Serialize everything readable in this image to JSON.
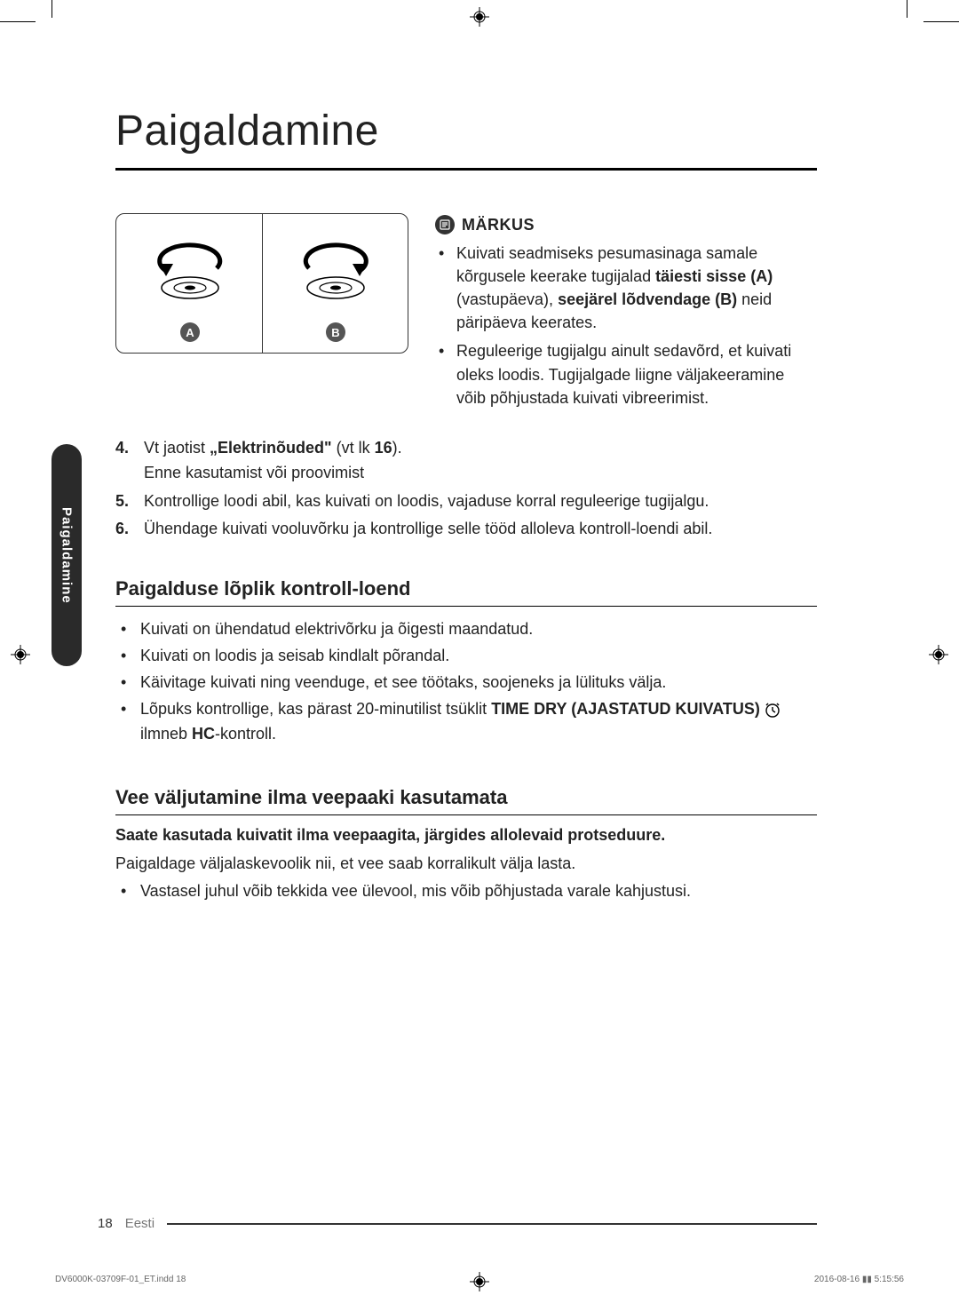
{
  "title": "Paigaldamine",
  "diagram": {
    "label_a": "A",
    "label_b": "B"
  },
  "note": {
    "heading": "MÄRKUS",
    "items": [
      "Kuivati seadmiseks pesumasinaga samale kõrgusele keerake tugijalad <b>täiesti sisse (A)</b> (vastupäeva), <b>seejärel lõdvendage (B)</b> neid päripäeva keerates.",
      "Reguleerige tugijalgu ainult sedavõrd, et kuivati oleks loodis. Tugijalgade liigne väljakeeramine võib põhjustada kuivati vibreerimist."
    ]
  },
  "steps": [
    {
      "n": "4.",
      "html": "Vt jaotist <b>„Elektrinõuded\"</b> (vt lk <b>16</b>).<br>Enne kasutamist või proovimist"
    },
    {
      "n": "5.",
      "html": "Kontrollige loodi abil, kas kuivati on loodis, vajaduse korral reguleerige tugijalgu."
    },
    {
      "n": "6.",
      "html": "Ühendage kuivati vooluvõrku ja kontrollige selle tööd alloleva kontroll-loendi abil."
    }
  ],
  "checklist": {
    "title": "Paigalduse lõplik kontroll-loend",
    "items": [
      "Kuivati on ühendatud elektrivõrku ja õigesti maandatud.",
      "Kuivati on loodis ja seisab kindlalt põrandal.",
      "Käivitage kuivati ning veenduge, et see töötaks, soojeneks ja lülituks välja.",
      "Lõpuks kontrollige, kas pärast 20-minutilist tsüklit <b>TIME DRY (AJASTATUD KUIVATUS)</b> <clock></clock> ilmneb <b>HC</b>-kontroll."
    ]
  },
  "drain": {
    "title": "Vee väljutamine ilma veepaaki kasutamata",
    "intro_bold": "Saate kasutada kuivatit ilma veepaagita, järgides allolevaid protseduure.",
    "para": "Paigaldage väljalaskevoolik nii, et vee saab korralikult välja lasta.",
    "bullet": "Vastasel juhul võib tekkida vee ülevool, mis võib põhjustada varale kahjustusi."
  },
  "side_tab": "Paigaldamine",
  "footer": {
    "page": "18",
    "lang": "Eesti"
  },
  "imprint": {
    "left": "DV6000K-03709F-01_ET.indd   18",
    "right": "2016-08-16   ▮▮ 5:15:56"
  }
}
